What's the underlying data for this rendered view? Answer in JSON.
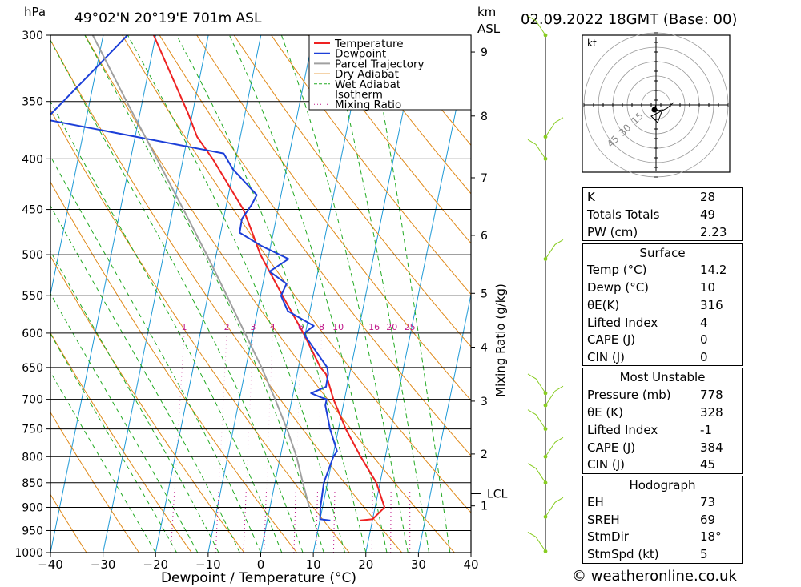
{
  "header": {
    "hpa_label": "hPa",
    "location": "49°02'N  20°19'E  701m  ASL",
    "km_label": "km",
    "asl_label": "ASL",
    "datetime": "02.09.2022  18GMT  (Base: 00)"
  },
  "hodograph": {
    "unit": "kt",
    "ring_labels": [
      "15",
      "30",
      "45"
    ]
  },
  "indices": {
    "k_label": "K",
    "k_value": "28",
    "tt_label": "Totals Totals",
    "tt_value": "49",
    "pw_label": "PW (cm)",
    "pw_value": "2.23",
    "surface": {
      "title": "Surface",
      "temp_label": "Temp (°C)",
      "temp_value": "14.2",
      "dewp_label": "Dewp (°C)",
      "dewp_value": "10",
      "theta_label": "θE(K)",
      "theta_value": "316",
      "li_label": "Lifted Index",
      "li_value": "4",
      "cape_label": "CAPE (J)",
      "cape_value": "0",
      "cin_label": "CIN (J)",
      "cin_value": "0"
    },
    "most_unstable": {
      "title": "Most Unstable",
      "pressure_label": "Pressure (mb)",
      "pressure_value": "778",
      "theta_label": "θE (K)",
      "theta_value": "328",
      "li_label": "Lifted Index",
      "li_value": "-1",
      "cape_label": "CAPE (J)",
      "cape_value": "384",
      "cin_label": "CIN (J)",
      "cin_value": "45"
    },
    "hodo": {
      "title": "Hodograph",
      "eh_label": "EH",
      "eh_value": "73",
      "sreh_label": "SREH",
      "sreh_value": "69",
      "stmdir_label": "StmDir",
      "stmdir_value": "18°",
      "stmspd_label": "StmSpd (kt)",
      "stmspd_value": "5"
    }
  },
  "footer": {
    "copyright": "© weatheronline.co.uk"
  },
  "chart_data": {
    "type": "line",
    "xlabel": "Dewpoint / Temperature (°C)",
    "ylabel": "Mixing Ratio (g/kg)",
    "xlim": [
      -40,
      40
    ],
    "plim": [
      1000,
      300
    ],
    "pressure_ticks": [
      1000,
      950,
      900,
      850,
      800,
      750,
      700,
      650,
      600,
      550,
      500,
      450,
      400,
      350,
      300
    ],
    "temp_ticks": [
      -40,
      -30,
      -20,
      -10,
      0,
      10,
      20,
      30,
      40
    ],
    "km_ticks": [
      1,
      2,
      3,
      4,
      5,
      6,
      7,
      8,
      9
    ],
    "km_pressures": [
      897,
      795,
      703,
      620,
      547,
      478,
      418,
      362,
      312
    ],
    "lcl_label": "LCL",
    "lcl_pressure": 872,
    "mixing_ratio_labels": [
      "1",
      "2",
      "3",
      "4",
      "6",
      "8",
      "10",
      "16",
      "20",
      "25"
    ],
    "mixing_ratio_values": [
      1,
      2,
      3,
      4,
      6,
      8,
      10,
      16,
      20,
      25
    ],
    "legend": [
      "Temperature",
      "Dewpoint",
      "Parcel Trajectory",
      "Dry Adiabat",
      "Wet Adiabat",
      "Isotherm",
      "Mixing Ratio"
    ],
    "colors": {
      "temperature": "#ee2222",
      "dewpoint": "#1c3fd8",
      "parcel": "#a0a0a0",
      "dry_adiabat": "#e08a1a",
      "wet_adiabat": "#22aa22",
      "isotherm": "#1f9ad6",
      "mixing_ratio": "#c0188a",
      "wind": "#88cc22"
    },
    "series": [
      {
        "name": "Temperature",
        "points": [
          [
            928,
            17.6
          ],
          [
            925,
            20
          ],
          [
            900,
            21.8
          ],
          [
            850,
            19.3
          ],
          [
            800,
            15.3
          ],
          [
            750,
            11.4
          ],
          [
            700,
            7.9
          ],
          [
            660,
            5.5
          ],
          [
            650,
            4.2
          ],
          [
            600,
            -0.4
          ],
          [
            550,
            -5.8
          ],
          [
            500,
            -11.6
          ],
          [
            470,
            -14.5
          ],
          [
            450,
            -16.6
          ],
          [
            400,
            -24.4
          ],
          [
            380,
            -28.2
          ],
          [
            360,
            -30.8
          ],
          [
            300,
            -40.4
          ]
        ]
      },
      {
        "name": "Dewpoint",
        "points": [
          [
            928,
            12
          ],
          [
            925,
            10
          ],
          [
            900,
            9.6
          ],
          [
            850,
            9.3
          ],
          [
            800,
            10.1
          ],
          [
            790,
            10.6
          ],
          [
            750,
            8.4
          ],
          [
            710,
            6.6
          ],
          [
            700,
            6.6
          ],
          [
            697,
            5.5
          ],
          [
            690,
            3.4
          ],
          [
            680,
            6.0
          ],
          [
            660,
            5.9
          ],
          [
            650,
            5.5
          ],
          [
            605,
            0.2
          ],
          [
            600,
            -0.2
          ],
          [
            590,
            1.3
          ],
          [
            570,
            -4.2
          ],
          [
            550,
            -6.1
          ],
          [
            535,
            -5.5
          ],
          [
            520,
            -9.2
          ],
          [
            505,
            -6.1
          ],
          [
            490,
            -11.7
          ],
          [
            475,
            -16.4
          ],
          [
            460,
            -16.5
          ],
          [
            445,
            -15.2
          ],
          [
            435,
            -14.6
          ],
          [
            410,
            -20.1
          ],
          [
            395,
            -22.5
          ],
          [
            365,
            -57.7
          ],
          [
            320,
            -49.4
          ],
          [
            300,
            -45.4
          ]
        ]
      },
      {
        "name": "Parcel Trajectory",
        "points": [
          [
            900,
            7.5
          ],
          [
            850,
            5.3
          ],
          [
            800,
            3.1
          ],
          [
            750,
            0.2
          ],
          [
            700,
            -3.2
          ],
          [
            650,
            -7.0
          ],
          [
            600,
            -11.5
          ],
          [
            550,
            -16.4
          ],
          [
            500,
            -21.8
          ],
          [
            450,
            -28.0
          ],
          [
            400,
            -35.0
          ],
          [
            350,
            -43.0
          ],
          [
            300,
            -52.0
          ]
        ]
      }
    ],
    "wind_barb_pressures": [
      997,
      920,
      850,
      800,
      750,
      710,
      690,
      505,
      400,
      380,
      300
    ]
  }
}
